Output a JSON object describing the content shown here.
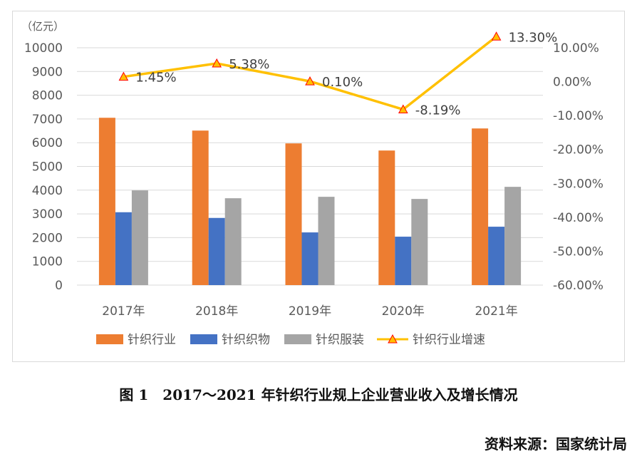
{
  "chart_data": {
    "type": "bar+line",
    "unit_label": "（亿元）",
    "categories": [
      "2017年",
      "2018年",
      "2019年",
      "2020年",
      "2021年"
    ],
    "series": [
      {
        "name": "针织行业",
        "type": "bar",
        "axis": "left",
        "color": "#ED7D31",
        "values": [
          7050,
          6510,
          5970,
          5670,
          6600
        ]
      },
      {
        "name": "针织织物",
        "type": "bar",
        "axis": "left",
        "color": "#4472C4",
        "values": [
          3070,
          2830,
          2220,
          2040,
          2460
        ]
      },
      {
        "name": "针织服装",
        "type": "bar",
        "axis": "left",
        "color": "#A5A5A5",
        "values": [
          3990,
          3660,
          3720,
          3630,
          4140
        ]
      },
      {
        "name": "针织行业增速",
        "type": "line",
        "axis": "right",
        "color": "#FFC000",
        "marker": "triangle",
        "values": [
          1.45,
          5.38,
          0.1,
          -8.19,
          13.3
        ],
        "labels": [
          "1.45%",
          "5.38%",
          "0.10%",
          "-8.19%",
          "13.30%"
        ]
      }
    ],
    "left_axis": {
      "ylim": [
        0,
        10000
      ],
      "ticks": [
        "0",
        "1000",
        "2000",
        "3000",
        "4000",
        "5000",
        "6000",
        "7000",
        "8000",
        "9000",
        "10000"
      ]
    },
    "right_axis": {
      "ylim": [
        -60,
        10
      ],
      "ticks": [
        "-60.00%",
        "-50.00%",
        "-40.00%",
        "-30.00%",
        "-20.00%",
        "-10.00%",
        "0.00%",
        "10.00%"
      ]
    },
    "grid": true,
    "legend": "bottom"
  },
  "caption": "图 1　2017～2021 年针织行业规上企业营业收入及增长情况",
  "source": "资料来源：国家统计局"
}
